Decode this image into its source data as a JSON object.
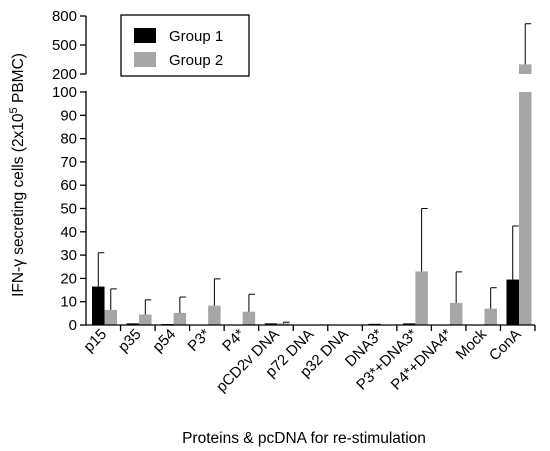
{
  "chart_data": {
    "type": "bar",
    "xlabel": "Proteins & pcDNA for re-stimulation",
    "ylabel": "IFN-γ secreting cells (2x10",
    "ylabel_sup": "5",
    "ylabel_tail": " PBMC)",
    "categories": [
      "p15",
      "p35",
      "p54",
      "P3*",
      "P4*",
      "pCD2v DNA",
      "p72 DNA",
      "p32 DNA",
      "DNA3*",
      "P3*+DNA3*",
      "P4*+DNA4*",
      "Mock",
      "ConA"
    ],
    "series": [
      {
        "name": "Group 1",
        "color": "#000000",
        "values": [
          16.5,
          0.7,
          0.4,
          0,
          0,
          0.7,
          0,
          0,
          0.5,
          0.7,
          0,
          0,
          19.5
        ],
        "errors": [
          14.5,
          0,
          0,
          0,
          0,
          0,
          0,
          0,
          0,
          0,
          0,
          0,
          23
        ]
      },
      {
        "name": "Group 2",
        "color": "#a6a6a6",
        "values": [
          6.5,
          4.5,
          5.2,
          8.3,
          5.7,
          0.7,
          0,
          0,
          0,
          23,
          9.5,
          7,
          300
        ],
        "errors": [
          9,
          6.3,
          6.8,
          11.5,
          7.5,
          0.5,
          0,
          0,
          0,
          27,
          13.3,
          9,
          420
        ]
      }
    ],
    "y_segments": [
      {
        "range": [
          0,
          100
        ],
        "ticks": [
          0,
          10,
          20,
          30,
          40,
          50,
          60,
          70,
          80,
          90,
          100
        ]
      },
      {
        "range": [
          200,
          800
        ],
        "ticks": [
          200,
          500,
          800
        ]
      }
    ],
    "legend": "top-left",
    "grid": false
  }
}
